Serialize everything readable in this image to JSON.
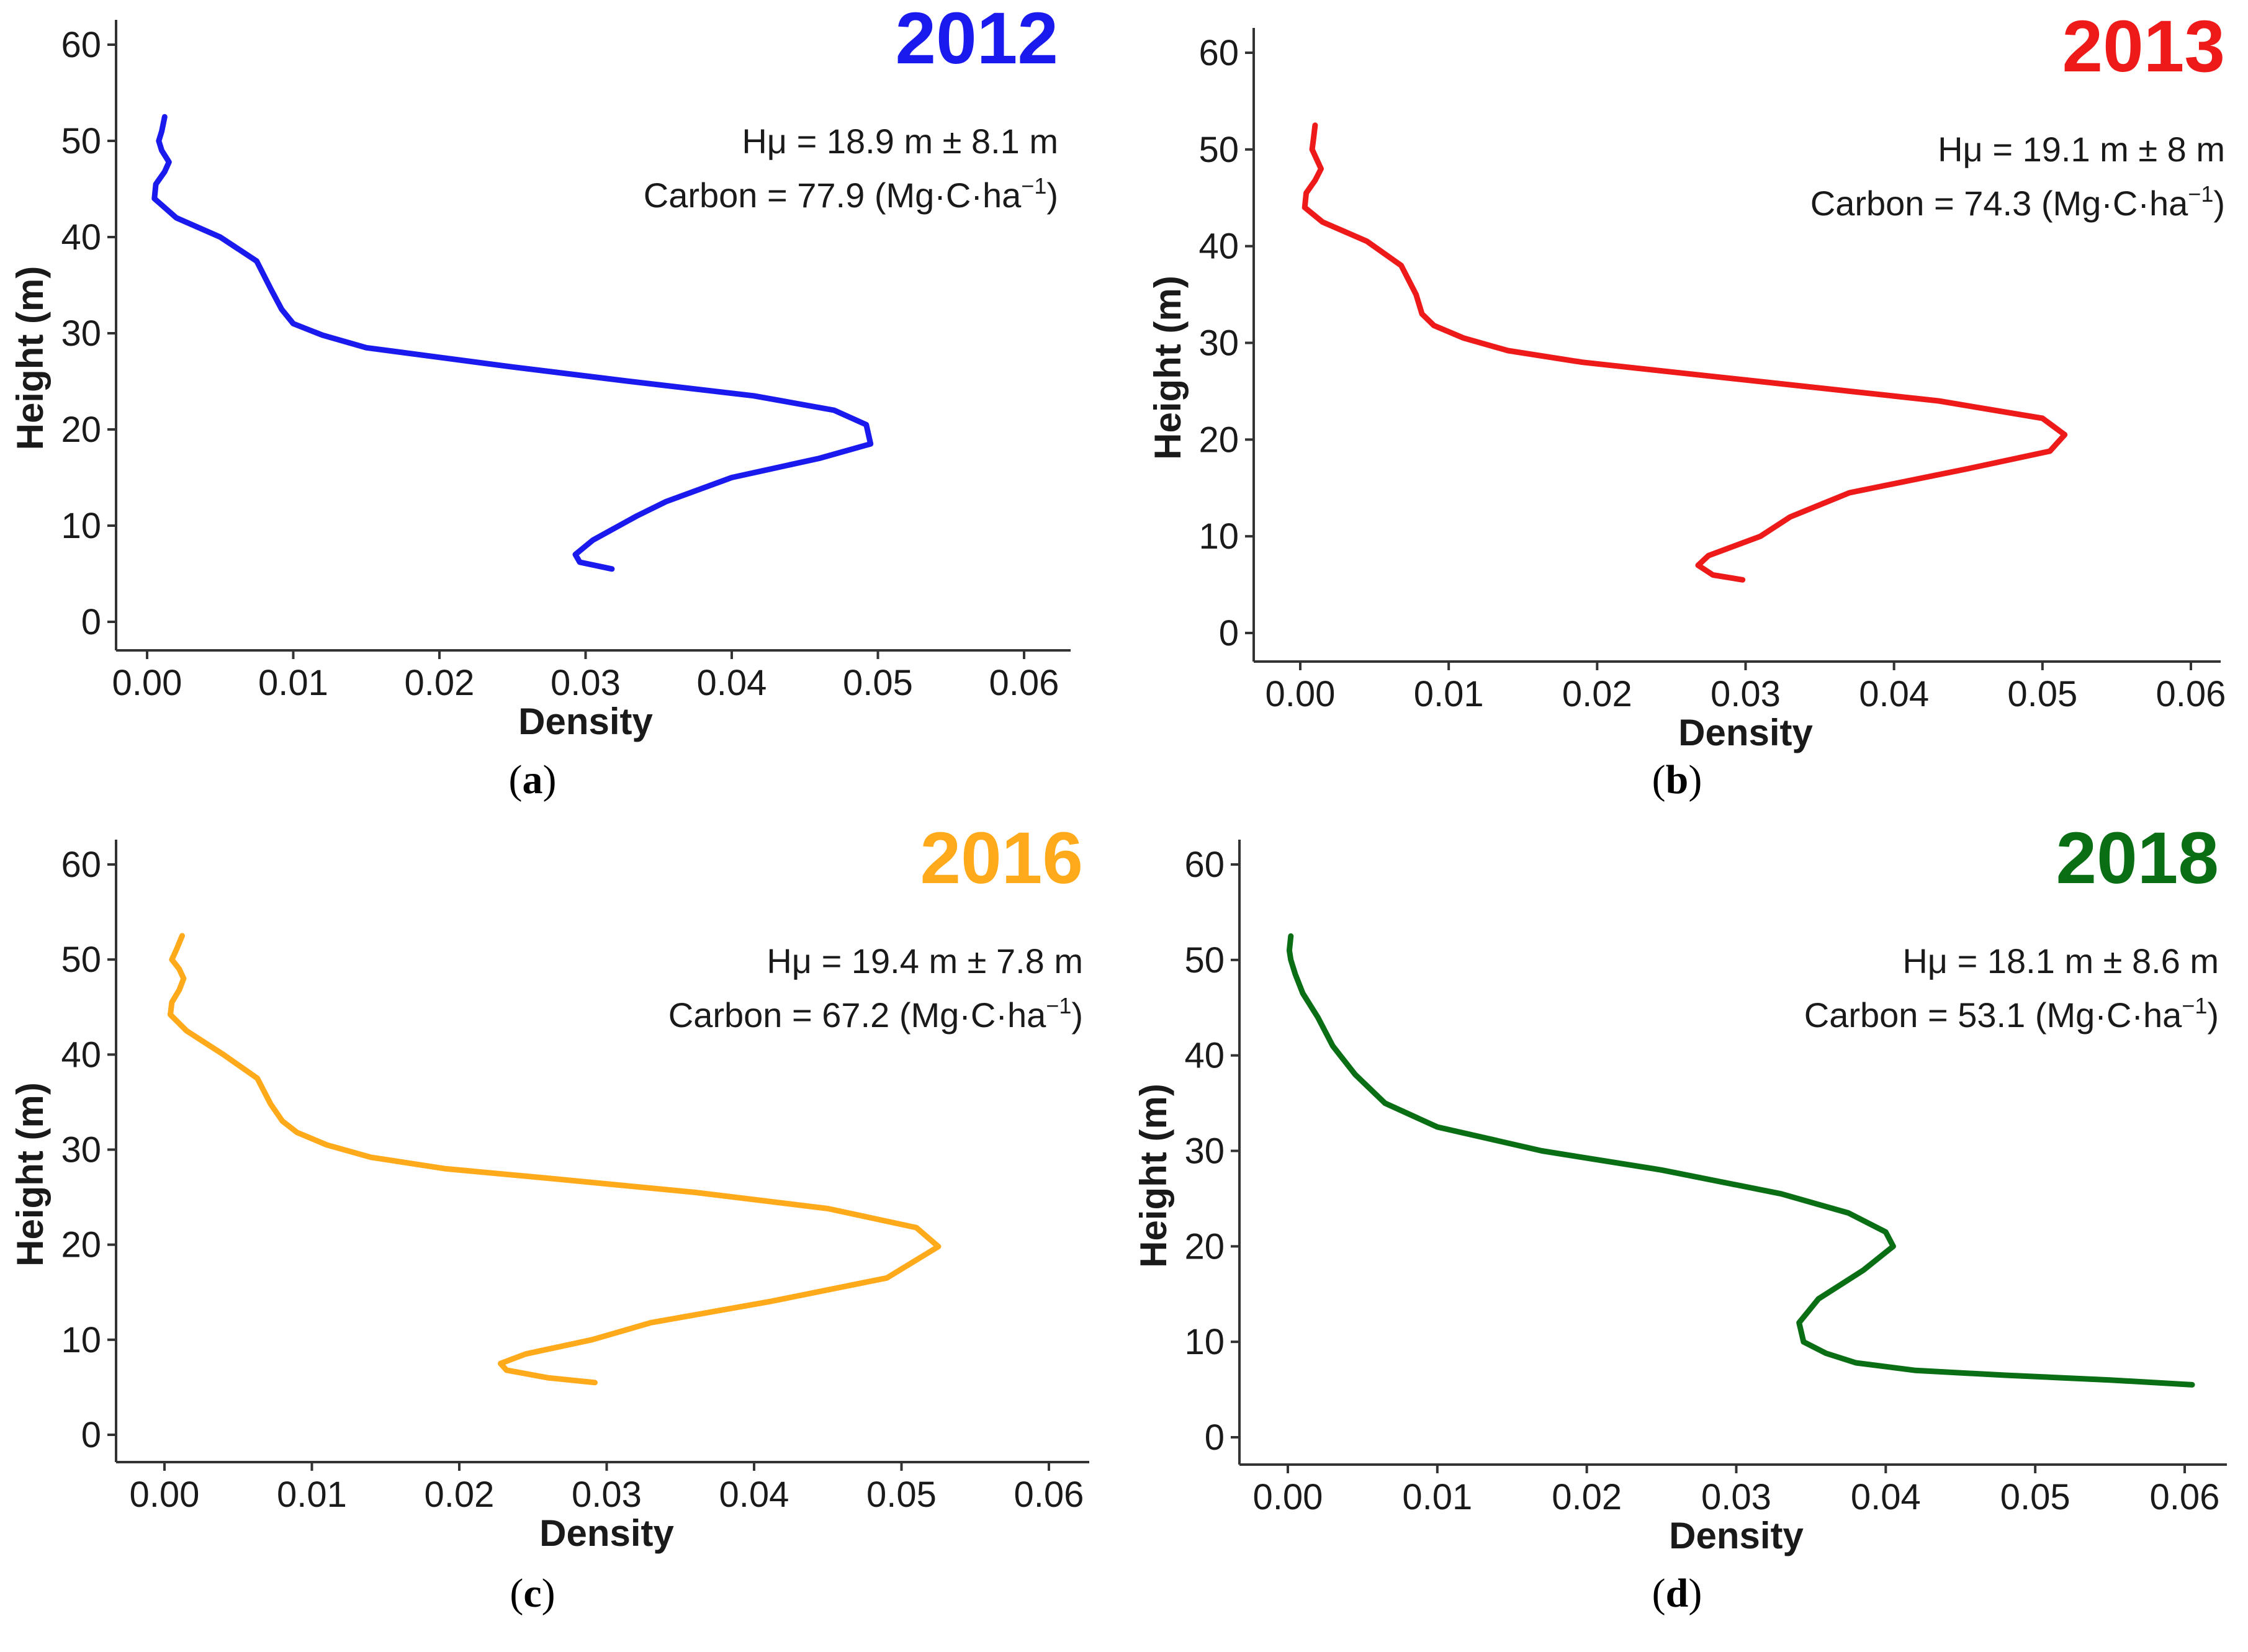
{
  "chart_data": [
    {
      "type": "line",
      "panel_label": "a",
      "title": "2012",
      "color": "#1a1aee",
      "xlabel": "Density",
      "ylabel": "Height (m)",
      "xlim": [
        0,
        0.06
      ],
      "ylim": [
        0,
        60
      ],
      "xticks": [
        "0.00",
        "0.01",
        "0.02",
        "0.03",
        "0.04",
        "0.05",
        "0.06"
      ],
      "yticks": [
        "0",
        "10",
        "20",
        "30",
        "40",
        "50",
        "60"
      ],
      "annotation_height": "Hμ = 18.9 m ± 8.1 m",
      "annotation_carbon": "Carbon = 77.9 (Mg·C·ha",
      "annotation_sup": "−1",
      "annotation_close": ")",
      "series": [
        {
          "name": "2012",
          "x": [
            0.0318,
            0.0296,
            0.0293,
            0.0305,
            0.0335,
            0.0355,
            0.04,
            0.046,
            0.0495,
            0.0492,
            0.047,
            0.0415,
            0.033,
            0.025,
            0.02,
            0.015,
            0.012,
            0.01,
            0.0092,
            0.0085,
            0.0075,
            0.005,
            0.002,
            0.0005,
            0.0006,
            0.0012,
            0.0015,
            0.001,
            0.0008,
            0.001,
            0.0012
          ],
          "y": [
            5.5,
            6.2,
            7.0,
            8.5,
            11.0,
            12.5,
            15.0,
            17.0,
            18.5,
            20.5,
            22.0,
            23.5,
            25.0,
            26.5,
            27.5,
            28.5,
            29.8,
            31.0,
            32.5,
            34.5,
            37.5,
            40.0,
            42.0,
            44.0,
            45.5,
            46.8,
            47.8,
            49.0,
            50.0,
            51.0,
            52.5
          ]
        }
      ]
    },
    {
      "type": "line",
      "panel_label": "b",
      "title": "2013",
      "color": "#ee1a1a",
      "xlabel": "Density",
      "ylabel": "Height (m)",
      "xlim": [
        0,
        0.06
      ],
      "ylim": [
        0,
        60
      ],
      "xticks": [
        "0.00",
        "0.01",
        "0.02",
        "0.03",
        "0.04",
        "0.05",
        "0.06"
      ],
      "yticks": [
        "0",
        "10",
        "20",
        "30",
        "40",
        "50",
        "60"
      ],
      "annotation_height": "Hμ = 19.1 m ± 8 m",
      "annotation_carbon": "Carbon = 74.3 (Mg·C·ha",
      "annotation_sup": "−1",
      "annotation_close": ")",
      "series": [
        {
          "name": "2013",
          "x": [
            0.0298,
            0.0278,
            0.0268,
            0.0275,
            0.031,
            0.033,
            0.037,
            0.045,
            0.0505,
            0.0515,
            0.05,
            0.043,
            0.034,
            0.025,
            0.019,
            0.014,
            0.011,
            0.009,
            0.0082,
            0.0078,
            0.0068,
            0.0045,
            0.0015,
            0.0003,
            0.0004,
            0.001,
            0.0014,
            0.0011,
            0.0008,
            0.0009,
            0.001
          ],
          "y": [
            5.5,
            6.0,
            7.0,
            8.0,
            10.0,
            12.0,
            14.5,
            17.0,
            18.8,
            20.5,
            22.2,
            24.0,
            25.5,
            27.0,
            28.0,
            29.2,
            30.5,
            31.8,
            33.0,
            35.0,
            38.0,
            40.5,
            42.5,
            44.0,
            45.5,
            46.8,
            48.0,
            49.0,
            50.0,
            51.2,
            52.5
          ]
        }
      ]
    },
    {
      "type": "line",
      "panel_label": "c",
      "title": "2016",
      "color": "#ffaa1a",
      "xlabel": "Density",
      "ylabel": "Height (m)",
      "xlim": [
        0,
        0.06
      ],
      "ylim": [
        0,
        60
      ],
      "xticks": [
        "0.00",
        "0.01",
        "0.02",
        "0.03",
        "0.04",
        "0.05",
        "0.06"
      ],
      "yticks": [
        "0",
        "10",
        "20",
        "30",
        "40",
        "50",
        "60"
      ],
      "annotation_height": "Hμ = 19.4 m ± 7.8 m",
      "annotation_carbon": "Carbon = 67.2 (Mg·C·ha",
      "annotation_sup": "−1",
      "annotation_close": ")",
      "series": [
        {
          "name": "2016",
          "x": [
            0.0292,
            0.026,
            0.0232,
            0.0228,
            0.0245,
            0.029,
            0.033,
            0.041,
            0.049,
            0.0525,
            0.051,
            0.045,
            0.036,
            0.026,
            0.019,
            0.014,
            0.011,
            0.009,
            0.008,
            0.0072,
            0.0063,
            0.004,
            0.0015,
            0.0004,
            0.0005,
            0.001,
            0.0013,
            0.001,
            0.0005,
            0.0008,
            0.0012
          ],
          "y": [
            5.5,
            6.0,
            6.8,
            7.5,
            8.5,
            10.0,
            11.8,
            14.0,
            16.5,
            19.8,
            21.8,
            23.8,
            25.5,
            27.0,
            28.0,
            29.2,
            30.5,
            31.8,
            33.0,
            34.8,
            37.5,
            40.0,
            42.5,
            44.2,
            45.5,
            46.8,
            48.0,
            49.0,
            50.0,
            51.0,
            52.5
          ]
        }
      ]
    },
    {
      "type": "line",
      "panel_label": "d",
      "title": "2018",
      "color": "#0a6e14",
      "xlabel": "Density",
      "ylabel": "Height (m)",
      "xlim": [
        0,
        0.06
      ],
      "ylim": [
        0,
        60
      ],
      "xticks": [
        "0.00",
        "0.01",
        "0.02",
        "0.03",
        "0.04",
        "0.05",
        "0.06"
      ],
      "yticks": [
        "0",
        "10",
        "20",
        "30",
        "40",
        "50",
        "60"
      ],
      "annotation_height": "Hμ = 18.1 m ± 8.6 m",
      "annotation_carbon": "Carbon = 53.1 (Mg·C·ha",
      "annotation_sup": "−1",
      "annotation_close": ")",
      "series": [
        {
          "name": "2018",
          "x": [
            0.0605,
            0.055,
            0.048,
            0.042,
            0.038,
            0.036,
            0.0345,
            0.0342,
            0.0355,
            0.0385,
            0.0405,
            0.04,
            0.0375,
            0.033,
            0.025,
            0.017,
            0.01,
            0.0065,
            0.0045,
            0.003,
            0.002,
            0.001,
            0.0005,
            0.0002,
            0.0001,
            0.0002
          ],
          "y": [
            5.5,
            6.0,
            6.5,
            7.0,
            7.8,
            8.8,
            10.0,
            12.0,
            14.5,
            17.5,
            20.0,
            21.5,
            23.5,
            25.5,
            28.0,
            30.0,
            32.5,
            35.0,
            38.0,
            41.0,
            44.0,
            46.5,
            48.5,
            50.0,
            51.0,
            52.5
          ]
        }
      ]
    }
  ]
}
